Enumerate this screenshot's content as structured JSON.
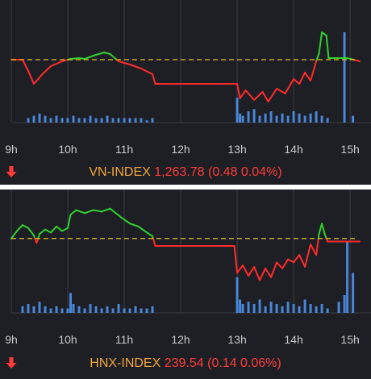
{
  "colors": {
    "background": "#1e1f24",
    "grid": "#3a3c44",
    "up": "#2fd12f",
    "down": "#ff2b2b",
    "reference": "#e6c21a",
    "volume": "#4a86d8",
    "index_name": "#f2a63a",
    "index_value": "#ff3b3b"
  },
  "icons": {
    "change_direction": "down-arrow-icon"
  },
  "chart_data": [
    {
      "type": "line",
      "index_name": "VN-INDEX",
      "value_text": "1,263.78 (0.48 0.04%)",
      "x_ticks": [
        "9h",
        "10h",
        "11h",
        "12h",
        "13h",
        "14h",
        "15h"
      ],
      "xlim": [
        9,
        15.17
      ],
      "reference": 0,
      "ylim": [
        -3.2,
        2.8
      ],
      "grid": true,
      "series": [
        {
          "values": [
            [
              9.0,
              0
            ],
            [
              9.2,
              0
            ],
            [
              9.3,
              -0.7
            ],
            [
              9.4,
              -1.5
            ],
            [
              9.55,
              -0.9
            ],
            [
              9.7,
              -0.4
            ],
            [
              9.9,
              -0.1
            ],
            [
              10.05,
              0.05
            ],
            [
              10.2,
              0.1
            ],
            [
              10.3,
              0.05
            ],
            [
              10.5,
              0.3
            ],
            [
              10.65,
              0.45
            ],
            [
              10.75,
              0.35
            ],
            [
              10.9,
              -0.1
            ],
            [
              11.1,
              -0.3
            ],
            [
              11.3,
              -0.55
            ],
            [
              11.5,
              -0.9
            ],
            [
              11.55,
              -1.5
            ],
            [
              11.9,
              -1.5
            ],
            [
              12.4,
              -1.5
            ],
            [
              12.9,
              -1.5
            ],
            [
              13.0,
              -1.5
            ],
            [
              13.05,
              -2.4
            ],
            [
              13.15,
              -1.9
            ],
            [
              13.3,
              -2.5
            ],
            [
              13.45,
              -2.0
            ],
            [
              13.55,
              -2.6
            ],
            [
              13.7,
              -1.8
            ],
            [
              13.85,
              -2.1
            ],
            [
              14.0,
              -1.2
            ],
            [
              14.1,
              -1.5
            ],
            [
              14.2,
              -0.8
            ],
            [
              14.3,
              -1.3
            ],
            [
              14.4,
              -0.1
            ],
            [
              14.45,
              0.4
            ],
            [
              14.5,
              1.7
            ],
            [
              14.58,
              1.5
            ],
            [
              14.62,
              0.1
            ],
            [
              14.8,
              0.1
            ],
            [
              14.95,
              0.1
            ],
            [
              15.17,
              -0.1
            ]
          ]
        }
      ],
      "volume_max": 40,
      "volume": [
        [
          9.3,
          2
        ],
        [
          9.4,
          3
        ],
        [
          9.5,
          4
        ],
        [
          9.6,
          3
        ],
        [
          9.7,
          2
        ],
        [
          9.8,
          3
        ],
        [
          9.9,
          2
        ],
        [
          10.0,
          2
        ],
        [
          10.1,
          3
        ],
        [
          10.2,
          2
        ],
        [
          10.3,
          2
        ],
        [
          10.4,
          3
        ],
        [
          10.5,
          2
        ],
        [
          10.6,
          2
        ],
        [
          10.7,
          3
        ],
        [
          10.8,
          2
        ],
        [
          10.9,
          2
        ],
        [
          11.0,
          2
        ],
        [
          11.1,
          2
        ],
        [
          11.2,
          2
        ],
        [
          11.3,
          2
        ],
        [
          11.4,
          1
        ],
        [
          11.5,
          2
        ],
        [
          13.0,
          11
        ],
        [
          13.05,
          4
        ],
        [
          13.1,
          3
        ],
        [
          13.2,
          5
        ],
        [
          13.3,
          6
        ],
        [
          13.4,
          3
        ],
        [
          13.5,
          4
        ],
        [
          13.6,
          5
        ],
        [
          13.7,
          3
        ],
        [
          13.8,
          4
        ],
        [
          13.9,
          3
        ],
        [
          14.0,
          5
        ],
        [
          14.1,
          4
        ],
        [
          14.2,
          3
        ],
        [
          14.3,
          4
        ],
        [
          14.4,
          5
        ],
        [
          14.5,
          3
        ],
        [
          14.6,
          2
        ],
        [
          14.9,
          40
        ],
        [
          15.05,
          3
        ]
      ]
    },
    {
      "type": "line",
      "index_name": "HNX-INDEX",
      "value_text": "239.54 (0.14 0.06%)",
      "x_ticks": [
        "9h",
        "10h",
        "11h",
        "12h",
        "13h",
        "14h",
        "15h"
      ],
      "xlim": [
        9,
        15.17
      ],
      "reference": 0,
      "ylim": [
        -3.2,
        2.2
      ],
      "grid": true,
      "series": [
        {
          "values": [
            [
              9.0,
              0
            ],
            [
              9.1,
              0.5
            ],
            [
              9.2,
              0.9
            ],
            [
              9.3,
              0.7
            ],
            [
              9.4,
              0.2
            ],
            [
              9.45,
              -0.3
            ],
            [
              9.5,
              0.3
            ],
            [
              9.6,
              0.6
            ],
            [
              9.7,
              0.4
            ],
            [
              9.8,
              0.8
            ],
            [
              9.9,
              0.5
            ],
            [
              10.0,
              0.7
            ],
            [
              10.05,
              1.6
            ],
            [
              10.15,
              1.9
            ],
            [
              10.3,
              1.7
            ],
            [
              10.45,
              1.9
            ],
            [
              10.6,
              1.8
            ],
            [
              10.75,
              2.0
            ],
            [
              10.85,
              1.7
            ],
            [
              10.95,
              1.4
            ],
            [
              11.1,
              1.0
            ],
            [
              11.25,
              0.8
            ],
            [
              11.4,
              0.4
            ],
            [
              11.5,
              0.15
            ],
            [
              11.55,
              -0.5
            ],
            [
              12.0,
              -0.5
            ],
            [
              12.5,
              -0.5
            ],
            [
              12.95,
              -0.5
            ],
            [
              13.0,
              -2.3
            ],
            [
              13.1,
              -1.8
            ],
            [
              13.2,
              -2.5
            ],
            [
              13.3,
              -1.9
            ],
            [
              13.4,
              -2.8
            ],
            [
              13.5,
              -2.0
            ],
            [
              13.6,
              -2.6
            ],
            [
              13.7,
              -1.6
            ],
            [
              13.8,
              -2.0
            ],
            [
              13.9,
              -1.4
            ],
            [
              14.0,
              -1.6
            ],
            [
              14.1,
              -1.1
            ],
            [
              14.2,
              -1.9
            ],
            [
              14.3,
              -0.4
            ],
            [
              14.4,
              -1.1
            ],
            [
              14.45,
              0.3
            ],
            [
              14.5,
              1.0
            ],
            [
              14.55,
              0.3
            ],
            [
              14.6,
              -0.2
            ],
            [
              14.8,
              -0.2
            ],
            [
              15.0,
              -0.2
            ],
            [
              15.17,
              -0.2
            ]
          ]
        }
      ],
      "volume_max": 40,
      "volume": [
        [
          9.2,
          3
        ],
        [
          9.3,
          4
        ],
        [
          9.4,
          3
        ],
        [
          9.5,
          5
        ],
        [
          9.6,
          3
        ],
        [
          9.7,
          2
        ],
        [
          9.8,
          3
        ],
        [
          9.9,
          2
        ],
        [
          10.0,
          2
        ],
        [
          10.05,
          9
        ],
        [
          10.1,
          4
        ],
        [
          10.2,
          3
        ],
        [
          10.3,
          2
        ],
        [
          10.4,
          4
        ],
        [
          10.5,
          3
        ],
        [
          10.6,
          2
        ],
        [
          10.7,
          3
        ],
        [
          10.8,
          2
        ],
        [
          10.9,
          4
        ],
        [
          11.0,
          2
        ],
        [
          11.1,
          2
        ],
        [
          11.2,
          3
        ],
        [
          11.3,
          2
        ],
        [
          11.4,
          2
        ],
        [
          11.5,
          3
        ],
        [
          13.0,
          16
        ],
        [
          13.05,
          6
        ],
        [
          13.1,
          4
        ],
        [
          13.2,
          5
        ],
        [
          13.3,
          4
        ],
        [
          13.4,
          6
        ],
        [
          13.5,
          3
        ],
        [
          13.6,
          5
        ],
        [
          13.7,
          4
        ],
        [
          13.8,
          3
        ],
        [
          13.9,
          5
        ],
        [
          14.0,
          4
        ],
        [
          14.1,
          3
        ],
        [
          14.2,
          6
        ],
        [
          14.3,
          4
        ],
        [
          14.4,
          3
        ],
        [
          14.5,
          4
        ],
        [
          14.6,
          2
        ],
        [
          14.8,
          5
        ],
        [
          14.9,
          8
        ],
        [
          14.95,
          32
        ],
        [
          15.05,
          18
        ]
      ]
    }
  ]
}
